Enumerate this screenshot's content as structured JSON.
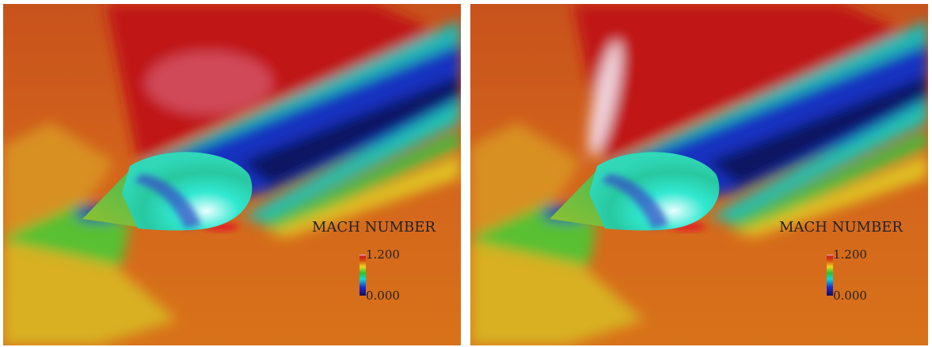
{
  "panels": [
    {
      "legend": {
        "title": "MACH NUMBER",
        "max": "1.200",
        "min": "0.000"
      }
    },
    {
      "legend": {
        "title": "MACH NUMBER",
        "max": "1.200",
        "min": "0.000"
      }
    }
  ]
}
